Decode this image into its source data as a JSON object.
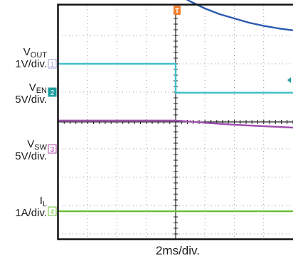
{
  "chart_data": {
    "type": "line",
    "title": "",
    "time_scale_label": "2ms/div.",
    "x_range_div": [
      -4,
      4
    ],
    "trigger_marker": "T",
    "channels": [
      {
        "id": "1",
        "name": "V",
        "name_sub": "OUT",
        "scale_label": "1V/div.",
        "color": "#2b59b0",
        "marker_color": "#9aa0d8",
        "points_div": [
          [
            -4,
            2.45
          ],
          [
            -2,
            2.45
          ],
          [
            0,
            2.45
          ],
          [
            0.1,
            2.42
          ],
          [
            0.5,
            2.2
          ],
          [
            1,
            1.95
          ],
          [
            1.5,
            1.75
          ],
          [
            2,
            1.6
          ],
          [
            2.5,
            1.45
          ],
          [
            3,
            1.34
          ],
          [
            3.5,
            1.25
          ],
          [
            4,
            1.18
          ]
        ]
      },
      {
        "id": "2",
        "name": "V",
        "name_sub": "EN",
        "scale_label": "5V/div.",
        "color": "#40c0c8",
        "marker_color": "#1f9ea0",
        "points_div": [
          [
            -4,
            1
          ],
          [
            0,
            1
          ],
          [
            0,
            -0.02
          ],
          [
            4,
            -0.02
          ]
        ]
      },
      {
        "id": "3",
        "name": "V",
        "name_sub": "SW",
        "scale_label": "5V/div.",
        "color": "#a050b0",
        "marker_color": "#b04aa8",
        "points_div": [
          [
            -4,
            1
          ],
          [
            0,
            1
          ],
          [
            1,
            0.92
          ],
          [
            2,
            0.85
          ],
          [
            3,
            0.8
          ],
          [
            4,
            0.75
          ]
        ]
      },
      {
        "id": "4",
        "name": "I",
        "name_sub": "L",
        "scale_label": "1A/div.",
        "color": "#6abf3a",
        "marker_color": "#6abf3a",
        "points_div": [
          [
            -4,
            0
          ],
          [
            4,
            0
          ]
        ]
      }
    ]
  }
}
